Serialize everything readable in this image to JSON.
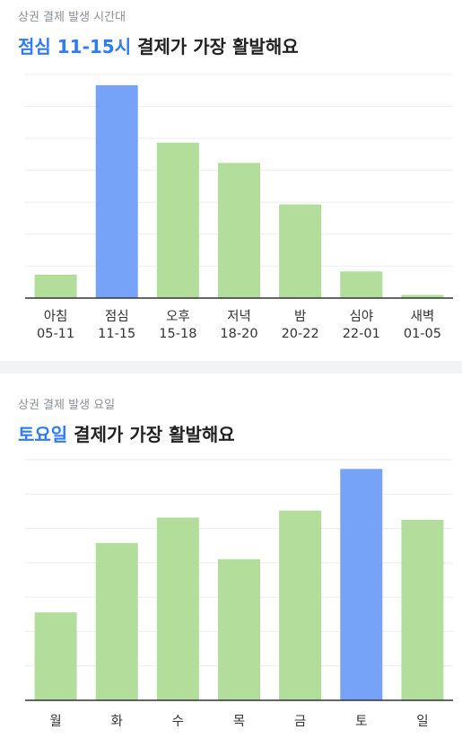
{
  "colors": {
    "highlight_bar": "#76a3f8",
    "normal_bar": "#b2dd9b",
    "highlight_text": "#2f7bf5",
    "gridline": "#eeeeee",
    "axis": "#333333"
  },
  "section1": {
    "subtitle": "상권 결제 발생 시간대",
    "title_highlight": "점심 11-15시",
    "title_rest": " 결제가 가장 활발해요"
  },
  "section2": {
    "subtitle": "상권 결제 발생 요일",
    "title_highlight": "토요일",
    "title_rest": " 결제가 가장 활발해요"
  },
  "chart_data": [
    {
      "type": "bar",
      "categories": [
        "아침\n05-11",
        "점심\n11-15",
        "오후\n15-18",
        "저녁\n18-20",
        "밤\n20-22",
        "심야\n22-01",
        "새벽\n01-05"
      ],
      "values": [
        11,
        100,
        73,
        63.5,
        44,
        12.5,
        1.5
      ],
      "highlight_index": 1,
      "ylim": [
        0,
        105
      ],
      "grid": true,
      "title": "",
      "xlabel": "",
      "ylabel": ""
    },
    {
      "type": "bar",
      "categories": [
        "월",
        "화",
        "수",
        "목",
        "금",
        "토",
        "일"
      ],
      "values": [
        38,
        68,
        79,
        61,
        82,
        100,
        78
      ],
      "highlight_index": 5,
      "ylim": [
        0,
        104
      ],
      "grid": true,
      "title": "",
      "xlabel": "",
      "ylabel": ""
    }
  ]
}
